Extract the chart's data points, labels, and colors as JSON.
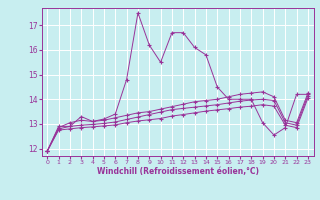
{
  "xlabel": "Windchill (Refroidissement éolien,°C)",
  "bg_color": "#c8eef0",
  "line_color": "#993399",
  "grid_color": "#ffffff",
  "xlim": [
    -0.5,
    23.5
  ],
  "ylim": [
    11.7,
    17.7
  ],
  "xticks": [
    0,
    1,
    2,
    3,
    4,
    5,
    6,
    7,
    8,
    9,
    10,
    11,
    12,
    13,
    14,
    15,
    16,
    17,
    18,
    19,
    20,
    21,
    22,
    23
  ],
  "yticks": [
    12,
    13,
    14,
    15,
    16,
    17
  ],
  "series1_x": [
    0,
    1,
    2,
    3,
    4,
    5,
    6,
    7,
    8,
    9,
    10,
    11,
    12,
    13,
    14,
    15,
    16,
    17,
    18,
    19,
    20,
    21,
    22,
    23
  ],
  "series1_y": [
    11.9,
    12.9,
    12.9,
    13.3,
    13.1,
    13.2,
    13.4,
    14.8,
    17.5,
    16.2,
    15.5,
    16.7,
    16.7,
    16.1,
    15.8,
    14.5,
    14.0,
    14.0,
    14.0,
    13.05,
    12.55,
    12.85,
    14.2,
    14.2
  ],
  "series2_x": [
    0,
    1,
    2,
    3,
    4,
    5,
    6,
    7,
    8,
    9,
    10,
    11,
    12,
    13,
    14,
    15,
    16,
    17,
    18,
    19,
    20,
    21,
    22,
    23
  ],
  "series2_y": [
    11.9,
    12.85,
    13.05,
    13.15,
    13.1,
    13.15,
    13.25,
    13.35,
    13.45,
    13.5,
    13.6,
    13.7,
    13.8,
    13.9,
    13.95,
    14.0,
    14.1,
    14.2,
    14.25,
    14.3,
    14.1,
    13.15,
    13.05,
    14.25
  ],
  "series3_x": [
    0,
    1,
    2,
    3,
    4,
    5,
    6,
    7,
    8,
    9,
    10,
    11,
    12,
    13,
    14,
    15,
    16,
    17,
    18,
    19,
    20,
    21,
    22,
    23
  ],
  "series3_y": [
    11.9,
    12.8,
    12.9,
    12.95,
    12.98,
    13.02,
    13.08,
    13.18,
    13.28,
    13.38,
    13.48,
    13.58,
    13.63,
    13.68,
    13.73,
    13.78,
    13.85,
    13.92,
    13.97,
    14.0,
    13.95,
    13.05,
    12.95,
    14.15
  ],
  "series4_x": [
    0,
    1,
    2,
    3,
    4,
    5,
    6,
    7,
    8,
    9,
    10,
    11,
    12,
    13,
    14,
    15,
    16,
    17,
    18,
    19,
    20,
    21,
    22,
    23
  ],
  "series4_y": [
    11.9,
    12.75,
    12.8,
    12.85,
    12.88,
    12.92,
    12.96,
    13.05,
    13.12,
    13.17,
    13.22,
    13.32,
    13.38,
    13.45,
    13.52,
    13.57,
    13.62,
    13.68,
    13.72,
    13.78,
    13.72,
    12.95,
    12.85,
    14.05
  ]
}
